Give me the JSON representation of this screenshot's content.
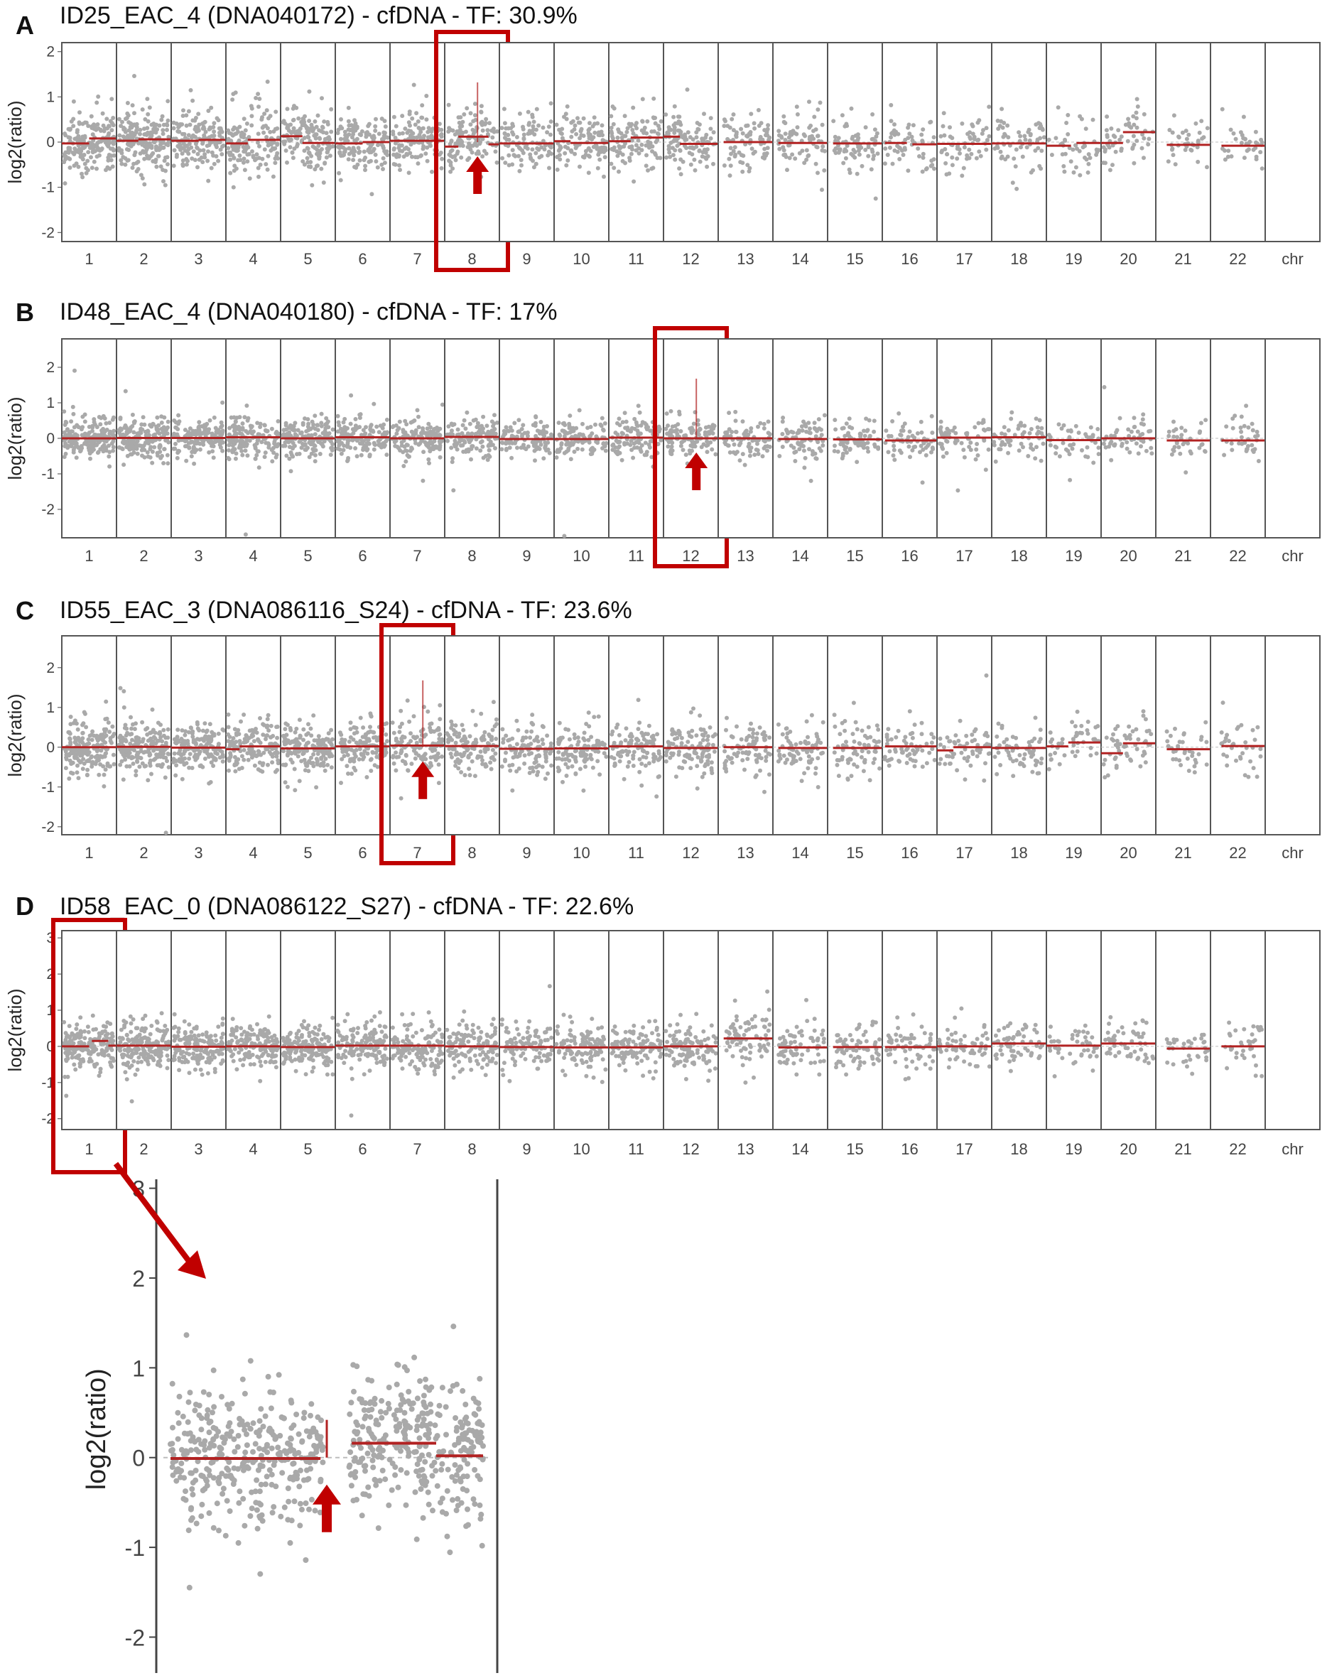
{
  "colors": {
    "points": "#a9a9a9",
    "segment": "#b22222",
    "highlight": "#c00000",
    "arrow": "#c00000",
    "frame": "#555555",
    "zeroline": "#bdbdbd"
  },
  "chart_data": [
    {
      "panel": "A",
      "type": "scatter",
      "title": "ID25_EAC_4 (DNA040172) - cfDNA - TF: 30.9%",
      "ylabel": "log2(ratio)",
      "xlabel": "chr",
      "ylim": [
        -2.2,
        2.2
      ],
      "yticks": [
        -2,
        -1,
        0,
        1,
        2
      ],
      "categories": [
        "1",
        "2",
        "3",
        "4",
        "5",
        "6",
        "7",
        "8",
        "9",
        "10",
        "11",
        "12",
        "13",
        "14",
        "15",
        "16",
        "17",
        "18",
        "19",
        "20",
        "21",
        "22"
      ],
      "chr_label": "chr",
      "highlight_chr": "8",
      "arrow_chr": "8",
      "segments": [
        {
          "chr": "1",
          "x0": 0.0,
          "x1": 0.5,
          "y": -0.03
        },
        {
          "chr": "1",
          "x0": 0.5,
          "x1": 1.0,
          "y": 0.08
        },
        {
          "chr": "2",
          "x0": 0.0,
          "x1": 0.4,
          "y": 0.03
        },
        {
          "chr": "2",
          "x0": 0.4,
          "x1": 1.0,
          "y": 0.06
        },
        {
          "chr": "3",
          "x0": 0.0,
          "x1": 0.5,
          "y": 0.03
        },
        {
          "chr": "3",
          "x0": 0.5,
          "x1": 1.0,
          "y": 0.05
        },
        {
          "chr": "4",
          "x0": 0.0,
          "x1": 0.4,
          "y": -0.03
        },
        {
          "chr": "4",
          "x0": 0.4,
          "x1": 1.0,
          "y": 0.05
        },
        {
          "chr": "5",
          "x0": 0.0,
          "x1": 0.4,
          "y": 0.13
        },
        {
          "chr": "5",
          "x0": 0.4,
          "x1": 1.0,
          "y": -0.02
        },
        {
          "chr": "6",
          "x0": 0.0,
          "x1": 0.5,
          "y": -0.03
        },
        {
          "chr": "6",
          "x0": 0.5,
          "x1": 1.0,
          "y": 0.0
        },
        {
          "chr": "7",
          "x0": 0.0,
          "x1": 1.0,
          "y": 0.03
        },
        {
          "chr": "8",
          "x0": 0.0,
          "x1": 0.25,
          "y": -0.1
        },
        {
          "chr": "8",
          "x0": 0.25,
          "x1": 0.8,
          "y": 0.12
        },
        {
          "chr": "8",
          "x0": 0.8,
          "x1": 1.0,
          "y": -0.05
        },
        {
          "chr": "9",
          "x0": 0.0,
          "x1": 1.0,
          "y": -0.03
        },
        {
          "chr": "10",
          "x0": 0.0,
          "x1": 0.3,
          "y": 0.02
        },
        {
          "chr": "10",
          "x0": 0.3,
          "x1": 1.0,
          "y": -0.02
        },
        {
          "chr": "11",
          "x0": 0.0,
          "x1": 0.4,
          "y": 0.02
        },
        {
          "chr": "11",
          "x0": 0.4,
          "x1": 1.0,
          "y": 0.1
        },
        {
          "chr": "12",
          "x0": 0.0,
          "x1": 0.3,
          "y": 0.12
        },
        {
          "chr": "12",
          "x0": 0.3,
          "x1": 1.0,
          "y": -0.04
        },
        {
          "chr": "13",
          "x0": 0.1,
          "x1": 1.0,
          "y": 0.0
        },
        {
          "chr": "14",
          "x0": 0.1,
          "x1": 1.0,
          "y": -0.02
        },
        {
          "chr": "15",
          "x0": 0.1,
          "x1": 1.0,
          "y": -0.03
        },
        {
          "chr": "16",
          "x0": 0.05,
          "x1": 0.45,
          "y": -0.02
        },
        {
          "chr": "16",
          "x0": 0.55,
          "x1": 1.0,
          "y": -0.05
        },
        {
          "chr": "17",
          "x0": 0.0,
          "x1": 1.0,
          "y": -0.04
        },
        {
          "chr": "18",
          "x0": 0.0,
          "x1": 1.0,
          "y": -0.03
        },
        {
          "chr": "19",
          "x0": 0.0,
          "x1": 0.45,
          "y": -0.08
        },
        {
          "chr": "19",
          "x0": 0.55,
          "x1": 1.0,
          "y": -0.02
        },
        {
          "chr": "20",
          "x0": 0.0,
          "x1": 0.4,
          "y": -0.02
        },
        {
          "chr": "20",
          "x0": 0.4,
          "x1": 1.0,
          "y": 0.22
        },
        {
          "chr": "21",
          "x0": 0.2,
          "x1": 1.0,
          "y": -0.06
        },
        {
          "chr": "22",
          "x0": 0.2,
          "x1": 1.0,
          "y": -0.08
        }
      ]
    },
    {
      "panel": "B",
      "type": "scatter",
      "title": "ID48_EAC_4 (DNA040180) - cfDNA - TF: 17%",
      "ylabel": "log2(ratio)",
      "xlabel": "chr",
      "ylim": [
        -2.8,
        2.8
      ],
      "yticks": [
        -2,
        -1,
        0,
        1,
        2
      ],
      "categories": [
        "1",
        "2",
        "3",
        "4",
        "5",
        "6",
        "7",
        "8",
        "9",
        "10",
        "11",
        "12",
        "13",
        "14",
        "15",
        "16",
        "17",
        "18",
        "19",
        "20",
        "21",
        "22"
      ],
      "chr_label": "chr",
      "highlight_chr": "12",
      "arrow_chr": "12",
      "segments": [
        {
          "chr": "1",
          "x0": 0.0,
          "x1": 1.0,
          "y": 0.0
        },
        {
          "chr": "2",
          "x0": 0.0,
          "x1": 1.0,
          "y": 0.01
        },
        {
          "chr": "3",
          "x0": 0.0,
          "x1": 1.0,
          "y": 0.01
        },
        {
          "chr": "4",
          "x0": 0.0,
          "x1": 1.0,
          "y": 0.03
        },
        {
          "chr": "5",
          "x0": 0.0,
          "x1": 1.0,
          "y": 0.0
        },
        {
          "chr": "6",
          "x0": 0.0,
          "x1": 1.0,
          "y": 0.03
        },
        {
          "chr": "7",
          "x0": 0.0,
          "x1": 1.0,
          "y": 0.0
        },
        {
          "chr": "8",
          "x0": 0.0,
          "x1": 1.0,
          "y": 0.04
        },
        {
          "chr": "9",
          "x0": 0.0,
          "x1": 1.0,
          "y": -0.02
        },
        {
          "chr": "10",
          "x0": 0.0,
          "x1": 1.0,
          "y": -0.02
        },
        {
          "chr": "11",
          "x0": 0.0,
          "x1": 1.0,
          "y": 0.02
        },
        {
          "chr": "12",
          "x0": 0.0,
          "x1": 1.0,
          "y": 0.0
        },
        {
          "chr": "13",
          "x0": 0.0,
          "x1": 1.0,
          "y": 0.0
        },
        {
          "chr": "14",
          "x0": 0.1,
          "x1": 1.0,
          "y": -0.02
        },
        {
          "chr": "15",
          "x0": 0.1,
          "x1": 1.0,
          "y": -0.03
        },
        {
          "chr": "16",
          "x0": 0.05,
          "x1": 1.0,
          "y": -0.06
        },
        {
          "chr": "17",
          "x0": 0.0,
          "x1": 1.0,
          "y": 0.02
        },
        {
          "chr": "18",
          "x0": 0.0,
          "x1": 1.0,
          "y": 0.03
        },
        {
          "chr": "19",
          "x0": 0.0,
          "x1": 1.0,
          "y": -0.05
        },
        {
          "chr": "20",
          "x0": 0.0,
          "x1": 1.0,
          "y": 0.0
        },
        {
          "chr": "21",
          "x0": 0.2,
          "x1": 1.0,
          "y": -0.06
        },
        {
          "chr": "22",
          "x0": 0.2,
          "x1": 1.0,
          "y": -0.06
        }
      ]
    },
    {
      "panel": "C",
      "type": "scatter",
      "title": "ID55_EAC_3 (DNA086116_S24) - cfDNA - TF: 23.6%",
      "ylabel": "log2(ratio)",
      "xlabel": "chr",
      "ylim": [
        -2.2,
        2.8
      ],
      "yticks": [
        -2,
        -1,
        0,
        1,
        2
      ],
      "categories": [
        "1",
        "2",
        "3",
        "4",
        "5",
        "6",
        "7",
        "8",
        "9",
        "10",
        "11",
        "12",
        "13",
        "14",
        "15",
        "16",
        "17",
        "18",
        "19",
        "20",
        "21",
        "22"
      ],
      "chr_label": "chr",
      "highlight_chr": "7",
      "arrow_chr": "7",
      "segments": [
        {
          "chr": "1",
          "x0": 0.0,
          "x1": 1.0,
          "y": 0.0
        },
        {
          "chr": "2",
          "x0": 0.0,
          "x1": 1.0,
          "y": 0.01
        },
        {
          "chr": "3",
          "x0": 0.0,
          "x1": 1.0,
          "y": -0.01
        },
        {
          "chr": "4",
          "x0": 0.0,
          "x1": 0.25,
          "y": -0.05
        },
        {
          "chr": "4",
          "x0": 0.25,
          "x1": 1.0,
          "y": 0.02
        },
        {
          "chr": "5",
          "x0": 0.0,
          "x1": 1.0,
          "y": -0.03
        },
        {
          "chr": "6",
          "x0": 0.0,
          "x1": 1.0,
          "y": 0.02
        },
        {
          "chr": "7",
          "x0": 0.0,
          "x1": 1.0,
          "y": 0.04
        },
        {
          "chr": "8",
          "x0": 0.0,
          "x1": 1.0,
          "y": 0.03
        },
        {
          "chr": "9",
          "x0": 0.0,
          "x1": 1.0,
          "y": -0.04
        },
        {
          "chr": "10",
          "x0": 0.0,
          "x1": 1.0,
          "y": -0.03
        },
        {
          "chr": "11",
          "x0": 0.0,
          "x1": 1.0,
          "y": 0.02
        },
        {
          "chr": "12",
          "x0": 0.0,
          "x1": 1.0,
          "y": -0.02
        },
        {
          "chr": "13",
          "x0": 0.1,
          "x1": 1.0,
          "y": 0.0
        },
        {
          "chr": "14",
          "x0": 0.1,
          "x1": 1.0,
          "y": -0.02
        },
        {
          "chr": "15",
          "x0": 0.1,
          "x1": 1.0,
          "y": -0.02
        },
        {
          "chr": "16",
          "x0": 0.05,
          "x1": 1.0,
          "y": 0.02
        },
        {
          "chr": "17",
          "x0": 0.0,
          "x1": 0.3,
          "y": -0.08
        },
        {
          "chr": "17",
          "x0": 0.3,
          "x1": 1.0,
          "y": 0.0
        },
        {
          "chr": "18",
          "x0": 0.0,
          "x1": 1.0,
          "y": -0.02
        },
        {
          "chr": "19",
          "x0": 0.0,
          "x1": 0.4,
          "y": 0.02
        },
        {
          "chr": "19",
          "x0": 0.4,
          "x1": 1.0,
          "y": 0.12
        },
        {
          "chr": "20",
          "x0": 0.0,
          "x1": 0.4,
          "y": -0.15
        },
        {
          "chr": "20",
          "x0": 0.4,
          "x1": 1.0,
          "y": 0.1
        },
        {
          "chr": "21",
          "x0": 0.2,
          "x1": 1.0,
          "y": -0.05
        },
        {
          "chr": "22",
          "x0": 0.2,
          "x1": 1.0,
          "y": 0.03
        }
      ]
    },
    {
      "panel": "D",
      "type": "scatter",
      "title": "ID58_EAC_0 (DNA086122_S27) - cfDNA - TF: 22.6%",
      "ylabel": "log2(ratio)",
      "xlabel": "chr",
      "ylim": [
        -2.3,
        3.2
      ],
      "yticks": [
        -2,
        -1,
        0,
        1,
        2,
        3
      ],
      "categories": [
        "1",
        "2",
        "3",
        "4",
        "5",
        "6",
        "7",
        "8",
        "9",
        "10",
        "11",
        "12",
        "13",
        "14",
        "15",
        "16",
        "17",
        "18",
        "19",
        "20",
        "21",
        "22"
      ],
      "chr_label": "chr",
      "highlight_chr": "1",
      "arrow_chr": null,
      "segments": [
        {
          "chr": "1",
          "x0": 0.0,
          "x1": 0.5,
          "y": 0.0
        },
        {
          "chr": "1",
          "x0": 0.55,
          "x1": 0.85,
          "y": 0.15
        },
        {
          "chr": "1",
          "x0": 0.85,
          "x1": 1.0,
          "y": 0.02
        },
        {
          "chr": "2",
          "x0": 0.0,
          "x1": 1.0,
          "y": 0.02
        },
        {
          "chr": "3",
          "x0": 0.0,
          "x1": 1.0,
          "y": -0.01
        },
        {
          "chr": "4",
          "x0": 0.0,
          "x1": 1.0,
          "y": 0.0
        },
        {
          "chr": "5",
          "x0": 0.0,
          "x1": 1.0,
          "y": -0.02
        },
        {
          "chr": "6",
          "x0": 0.0,
          "x1": 1.0,
          "y": 0.02
        },
        {
          "chr": "7",
          "x0": 0.0,
          "x1": 1.0,
          "y": 0.02
        },
        {
          "chr": "8",
          "x0": 0.0,
          "x1": 1.0,
          "y": 0.0
        },
        {
          "chr": "9",
          "x0": 0.0,
          "x1": 1.0,
          "y": -0.02
        },
        {
          "chr": "10",
          "x0": 0.0,
          "x1": 1.0,
          "y": -0.03
        },
        {
          "chr": "11",
          "x0": 0.0,
          "x1": 1.0,
          "y": -0.03
        },
        {
          "chr": "12",
          "x0": 0.0,
          "x1": 1.0,
          "y": 0.0
        },
        {
          "chr": "13",
          "x0": 0.1,
          "x1": 1.0,
          "y": 0.22
        },
        {
          "chr": "14",
          "x0": 0.1,
          "x1": 1.0,
          "y": -0.03
        },
        {
          "chr": "15",
          "x0": 0.1,
          "x1": 1.0,
          "y": -0.02
        },
        {
          "chr": "16",
          "x0": 0.05,
          "x1": 1.0,
          "y": -0.02
        },
        {
          "chr": "17",
          "x0": 0.0,
          "x1": 1.0,
          "y": 0.0
        },
        {
          "chr": "18",
          "x0": 0.0,
          "x1": 1.0,
          "y": 0.08
        },
        {
          "chr": "19",
          "x0": 0.0,
          "x1": 1.0,
          "y": 0.02
        },
        {
          "chr": "20",
          "x0": 0.0,
          "x1": 1.0,
          "y": 0.08
        },
        {
          "chr": "21",
          "x0": 0.2,
          "x1": 1.0,
          "y": -0.06
        },
        {
          "chr": "22",
          "x0": 0.2,
          "x1": 1.0,
          "y": 0.0
        }
      ]
    },
    {
      "panel": "D-inset",
      "type": "scatter",
      "title": "",
      "ylabel": "log2(ratio)",
      "xlabel": "",
      "ylim": [
        -2.4,
        3.1
      ],
      "yticks": [
        -2,
        -1,
        0,
        1,
        2,
        3
      ],
      "ytick_labels": [
        "-2",
        "-1",
        "0",
        "1",
        "2",
        "3"
      ],
      "source_chr": "1",
      "segments": [
        {
          "x0": 0.0,
          "x1": 0.48,
          "y": -0.01
        },
        {
          "x0": 0.58,
          "x1": 0.85,
          "y": 0.16
        },
        {
          "x0": 0.85,
          "x1": 1.0,
          "y": 0.02
        }
      ],
      "focal_spike": {
        "x": 0.5,
        "y_top": 0.42
      }
    }
  ]
}
